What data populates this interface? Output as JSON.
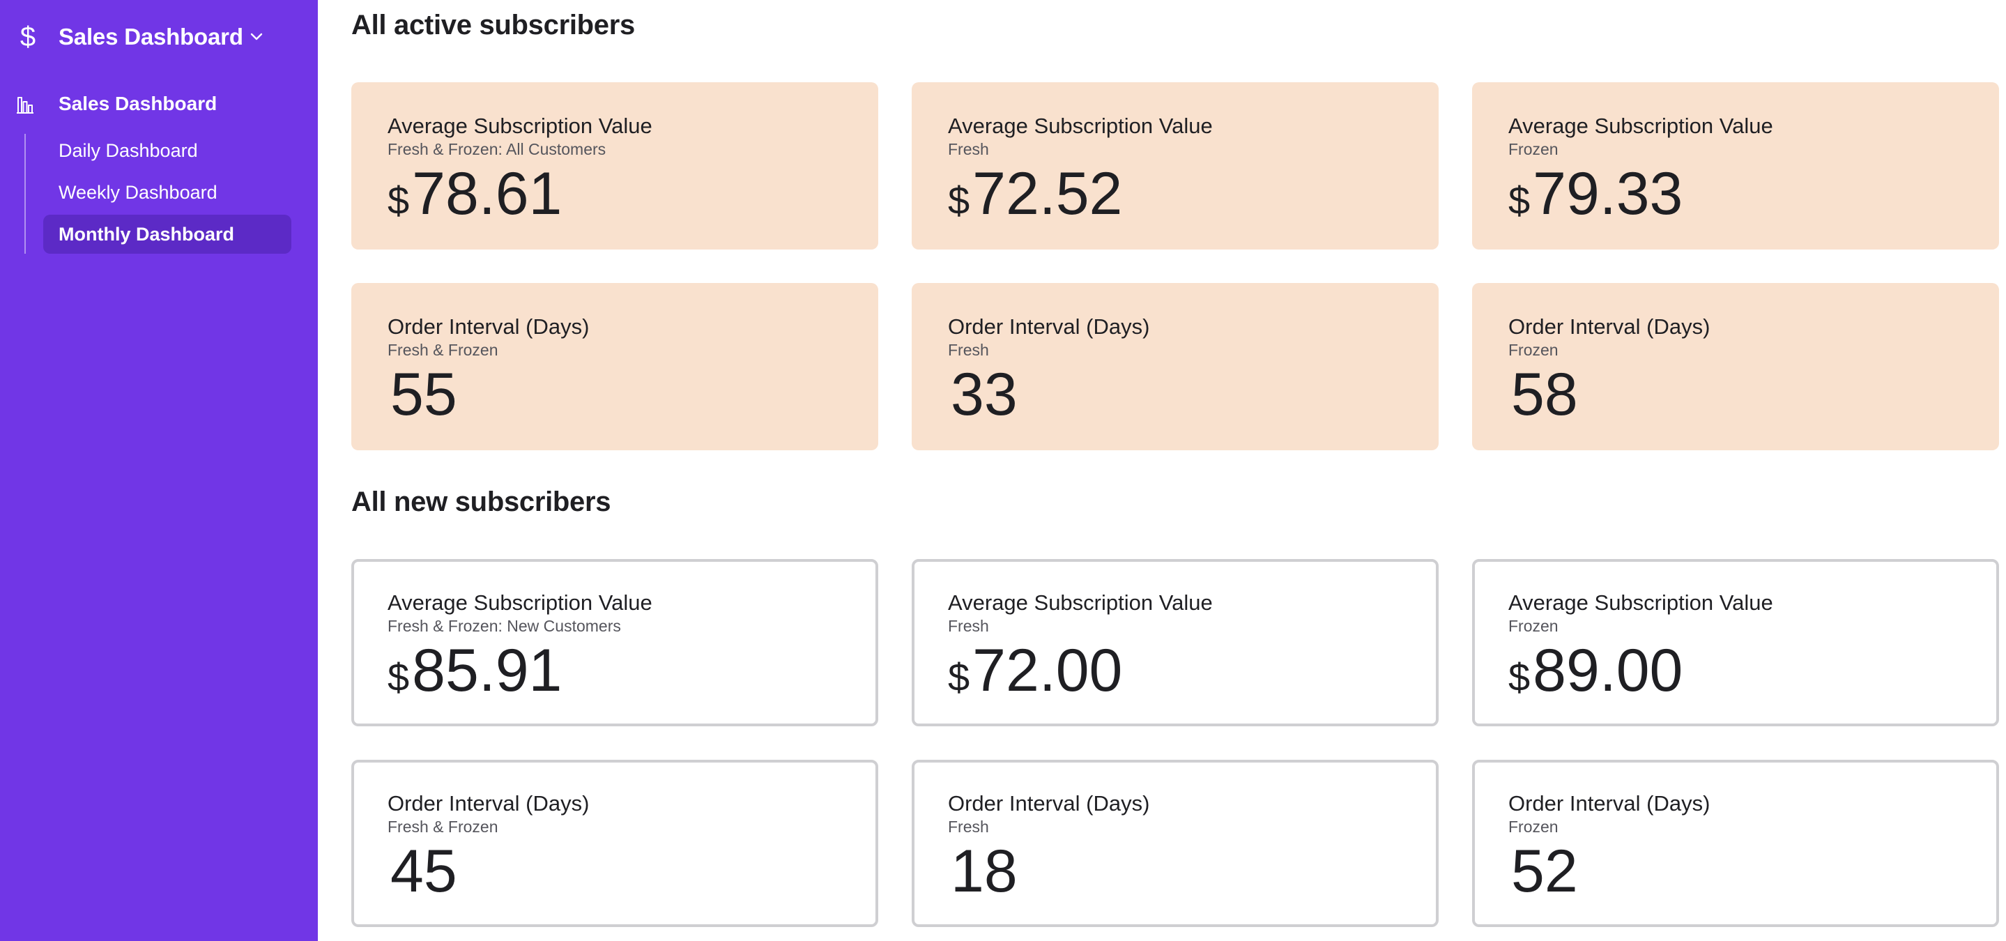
{
  "sidebar": {
    "app_icon": "dollar-icon",
    "app_title": "Sales Dashboard",
    "section_icon": "bar-chart-icon",
    "section_label": "Sales Dashboard",
    "items": [
      {
        "label": "Daily Dashboard",
        "active": false
      },
      {
        "label": "Weekly Dashboard",
        "active": false
      },
      {
        "label": "Monthly Dashboard",
        "active": true
      }
    ],
    "colors": {
      "background": "#7136e6",
      "active_item": "#5c2ac6"
    }
  },
  "sections": [
    {
      "title": "All active subscribers",
      "card_style": "filled",
      "card_color": "#f9e1ce",
      "cards": [
        {
          "title": "Average Subscription Value",
          "subtitle": "Fresh & Frozen: All Customers",
          "currency": "$",
          "value": "78.61"
        },
        {
          "title": "Average Subscription Value",
          "subtitle": "Fresh",
          "currency": "$",
          "value": "72.52"
        },
        {
          "title": "Average Subscription Value",
          "subtitle": "Frozen",
          "currency": "$",
          "value": "79.33"
        },
        {
          "title": "Order Interval (Days)",
          "subtitle": "Fresh & Frozen",
          "currency": "",
          "value": "55"
        },
        {
          "title": "Order Interval (Days)",
          "subtitle": "Fresh",
          "currency": "",
          "value": "33"
        },
        {
          "title": "Order Interval (Days)",
          "subtitle": "Frozen",
          "currency": "",
          "value": "58"
        }
      ]
    },
    {
      "title": "All new subscribers",
      "card_style": "outlined",
      "card_color": "#ffffff",
      "cards": [
        {
          "title": "Average Subscription Value",
          "subtitle": "Fresh & Frozen: New Customers",
          "currency": "$",
          "value": "85.91"
        },
        {
          "title": "Average Subscription Value",
          "subtitle": "Fresh",
          "currency": "$",
          "value": "72.00"
        },
        {
          "title": "Average Subscription Value",
          "subtitle": "Frozen",
          "currency": "$",
          "value": "89.00"
        },
        {
          "title": "Order Interval (Days)",
          "subtitle": "Fresh & Frozen",
          "currency": "",
          "value": "45"
        },
        {
          "title": "Order Interval (Days)",
          "subtitle": "Fresh",
          "currency": "",
          "value": "18"
        },
        {
          "title": "Order Interval (Days)",
          "subtitle": "Frozen",
          "currency": "",
          "value": "52"
        }
      ]
    }
  ]
}
